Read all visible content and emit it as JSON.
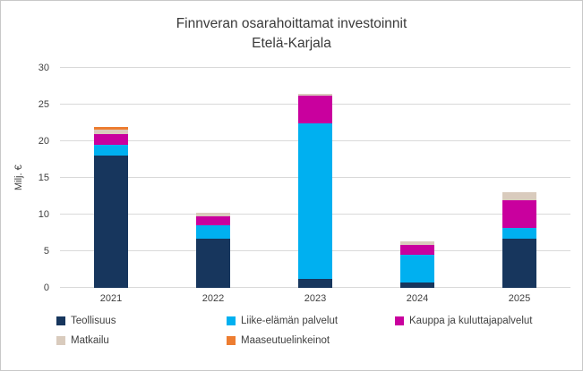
{
  "chart_data": {
    "type": "bar",
    "stacked": true,
    "title": "Finnveran osarahoittamat investoinnit",
    "subtitle": "Etelä-Karjala",
    "ylabel": "Milj. €",
    "ylim": [
      0,
      30
    ],
    "ytick_step": 5,
    "grid": true,
    "legend_position": "bottom",
    "categories": [
      "2021",
      "2022",
      "2023",
      "2024",
      "2025"
    ],
    "series": [
      {
        "name": "Teollisuus",
        "color": "#17365d",
        "values": [
          18.0,
          6.7,
          1.2,
          0.7,
          6.7
        ]
      },
      {
        "name": "Liike-elämän palvelut",
        "color": "#00b0f0",
        "values": [
          1.5,
          1.8,
          21.3,
          3.8,
          1.5
        ]
      },
      {
        "name": "Kauppa ja kuluttajapalvelut",
        "color": "#c9009e",
        "values": [
          1.5,
          1.3,
          3.7,
          1.3,
          3.8
        ]
      },
      {
        "name": "Matkailu",
        "color": "#d9cbbd",
        "values": [
          0.6,
          0.5,
          0.3,
          0.5,
          1.0
        ]
      },
      {
        "name": "Maaseutuelinkeinot",
        "color": "#ed7d31",
        "values": [
          0.3,
          0.0,
          0.0,
          0.0,
          0.0
        ]
      }
    ]
  }
}
